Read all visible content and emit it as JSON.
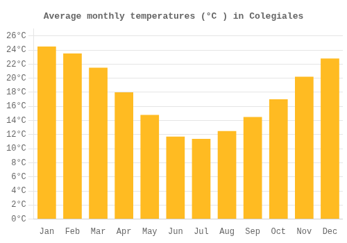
{
  "chart_data": {
    "type": "bar",
    "title": "Average monthly temperatures (°C ) in Colegiales",
    "categories": [
      "Jan",
      "Feb",
      "Mar",
      "Apr",
      "May",
      "Jun",
      "Jul",
      "Aug",
      "Sep",
      "Oct",
      "Nov",
      "Dec"
    ],
    "values": [
      24.5,
      23.5,
      21.5,
      18.0,
      14.8,
      11.7,
      11.4,
      12.5,
      14.5,
      17.0,
      20.2,
      22.8
    ],
    "color": "#FFBB22",
    "ylim": [
      0,
      27
    ],
    "yticks": [
      {
        "value": 0,
        "label": "0°C"
      },
      {
        "value": 2,
        "label": "2°C"
      },
      {
        "value": 4,
        "label": "4°C"
      },
      {
        "value": 6,
        "label": "6°C"
      },
      {
        "value": 8,
        "label": "8°C"
      },
      {
        "value": 10,
        "label": "10°C"
      },
      {
        "value": 12,
        "label": "12°C"
      },
      {
        "value": 14,
        "label": "14°C"
      },
      {
        "value": 16,
        "label": "16°C"
      },
      {
        "value": 18,
        "label": "18°C"
      },
      {
        "value": 20,
        "label": "20°C"
      },
      {
        "value": 22,
        "label": "22°C"
      },
      {
        "value": 24,
        "label": "24°C"
      },
      {
        "value": 26,
        "label": "26°C"
      }
    ],
    "grid": true
  }
}
